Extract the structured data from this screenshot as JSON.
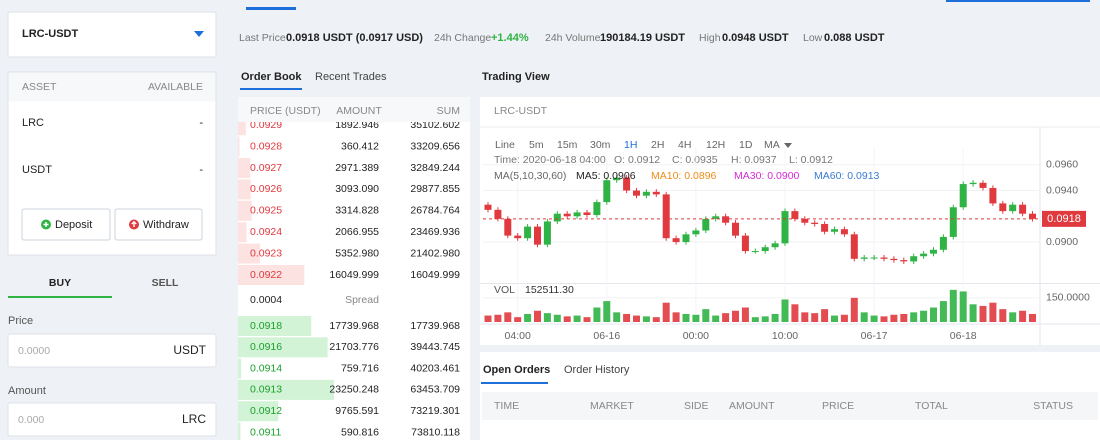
{
  "header": {
    "stats": [
      {
        "label": "Last Price",
        "value": "0.0918 USDT (0.0917 USD)"
      },
      {
        "label": "24h Change",
        "value": "+1.44%"
      },
      {
        "label": "24h Volume",
        "value": "190184.19 USDT"
      },
      {
        "label": "High",
        "value": "0.0948 USDT"
      },
      {
        "label": "Low",
        "value": "0.088 USDT"
      }
    ]
  },
  "sidebar": {
    "pair": "LRC-USDT",
    "assets": {
      "columns": [
        "ASSET",
        "AVAILABLE"
      ],
      "rows": [
        [
          "LRC",
          "-"
        ],
        [
          "USDT",
          "-"
        ]
      ]
    },
    "buttons": [
      "Deposit",
      "Withdraw"
    ],
    "tabs": [
      "BUY",
      "SELL"
    ],
    "fields": [
      {
        "label": "Price",
        "placeholder": "0.0000",
        "unit": "USDT"
      },
      {
        "label": "Amount",
        "placeholder": "0.000",
        "unit": "LRC"
      }
    ]
  },
  "order_book": {
    "tabs": [
      "Order Book",
      "Recent Trades"
    ],
    "columns": [
      "PRICE (USDT)",
      "AMOUNT",
      "SUM"
    ],
    "asks": [
      [
        "0.0929",
        "1892.946",
        "35102.602"
      ],
      [
        "0.0928",
        "360.412",
        "33209.656"
      ],
      [
        "0.0927",
        "2971.389",
        "32849.244"
      ],
      [
        "0.0926",
        "3093.090",
        "29877.855"
      ],
      [
        "0.0925",
        "3314.828",
        "26784.764"
      ],
      [
        "0.0924",
        "2066.955",
        "23469.936"
      ],
      [
        "0.0923",
        "5352.980",
        "21402.980"
      ],
      [
        "0.0922",
        "16049.999",
        "16049.999"
      ]
    ],
    "spread": [
      "0.0004",
      "Spread"
    ],
    "bids": [
      [
        "0.0918",
        "17739.968",
        "17739.968"
      ],
      [
        "0.0916",
        "21703.776",
        "39443.745"
      ],
      [
        "0.0914",
        "759.716",
        "40203.461"
      ],
      [
        "0.0913",
        "23250.248",
        "63453.709"
      ],
      [
        "0.0912",
        "9765.591",
        "73219.301"
      ],
      [
        "0.0911",
        "590.816",
        "73810.118"
      ]
    ]
  },
  "trading_view": {
    "title": "Trading View",
    "pair": "LRC-USDT",
    "intervals": [
      "Line",
      "5m",
      "15m",
      "30m",
      "1H",
      "2H",
      "4H",
      "12H",
      "1D",
      "MA"
    ],
    "info": [
      "Time: 2020-06-18 04:00",
      "O: 0.0912",
      "C: 0.0935",
      "H: 0.0937",
      "L: 0.0912"
    ],
    "ma_legend": [
      {
        "text": "MA(5,10,30,60)",
        "color": "#666666"
      },
      {
        "text": "MA5: 0.0906",
        "color": "#222222"
      },
      {
        "text": "MA10: 0.0896",
        "color": "#f08c1a"
      },
      {
        "text": "MA30: 0.0900",
        "color": "#d52bd5"
      },
      {
        "text": "MA60: 0.0913",
        "color": "#3a7bd5"
      }
    ]
  },
  "chart_data": {
    "type": "candlestick",
    "categories": [
      null,
      null,
      null,
      "04:00",
      null,
      null,
      null,
      null,
      null,
      null,
      null,
      null,
      "06-16",
      null,
      null,
      null,
      null,
      null,
      null,
      null,
      null,
      "00:00",
      null,
      null,
      null,
      null,
      null,
      null,
      null,
      null,
      "10:00",
      null,
      null,
      null,
      null,
      null,
      null,
      null,
      null,
      "06-17",
      null,
      null,
      null,
      null,
      null,
      null,
      null,
      null,
      "06-18",
      null,
      null,
      null,
      null,
      null,
      null,
      null
    ],
    "open": [
      0.0929,
      0.0925,
      0.0918,
      0.0905,
      0.0903,
      0.0912,
      0.0898,
      0.0916,
      0.0922,
      0.092,
      0.0923,
      0.0921,
      0.0931,
      0.0948,
      0.095,
      0.094,
      0.0936,
      0.0939,
      0.0937,
      0.0903,
      0.09,
      0.0906,
      0.0909,
      0.0918,
      0.092,
      0.0915,
      0.0905,
      0.0893,
      0.0893,
      0.0896,
      0.0899,
      0.0924,
      0.0918,
      0.0915,
      0.0914,
      0.0908,
      0.091,
      0.0906,
      0.0887,
      0.0888,
      0.0888,
      0.0887,
      0.0886,
      0.0885,
      0.0889,
      0.0891,
      0.0894,
      0.0904,
      0.0927,
      0.0945,
      0.0946,
      0.0942,
      0.093,
      0.0924,
      0.0929,
      0.0922
    ],
    "high": [
      0.0931,
      0.0927,
      0.092,
      0.0907,
      0.0914,
      0.0914,
      0.0918,
      0.0924,
      0.0924,
      0.0925,
      0.0925,
      0.0933,
      0.095,
      0.0952,
      0.0952,
      0.0942,
      0.0941,
      0.0941,
      0.0939,
      0.0905,
      0.0908,
      0.0911,
      0.092,
      0.0922,
      0.0922,
      0.0917,
      0.0907,
      0.0895,
      0.0898,
      0.0901,
      0.0926,
      0.0926,
      0.092,
      0.0917,
      0.0916,
      0.0912,
      0.0912,
      0.0908,
      0.089,
      0.089,
      0.089,
      0.0889,
      0.0888,
      0.0891,
      0.0893,
      0.0896,
      0.0906,
      0.0929,
      0.0947,
      0.0948,
      0.0948,
      0.0944,
      0.0932,
      0.0931,
      0.0931,
      0.0924
    ],
    "low": [
      0.0923,
      0.0916,
      0.0903,
      0.0901,
      0.0901,
      0.0896,
      0.0896,
      0.0914,
      0.0918,
      0.0918,
      0.0919,
      0.0919,
      0.0929,
      0.0946,
      0.0938,
      0.0934,
      0.0934,
      0.0935,
      0.0901,
      0.0898,
      0.0898,
      0.0904,
      0.0907,
      0.0916,
      0.0913,
      0.0903,
      0.0891,
      0.0891,
      0.0891,
      0.0894,
      0.0897,
      0.0916,
      0.0913,
      0.0912,
      0.0906,
      0.0906,
      0.0904,
      0.0885,
      0.0885,
      0.0886,
      0.0885,
      0.0884,
      0.0883,
      0.0883,
      0.0887,
      0.0889,
      0.0892,
      0.0902,
      0.0925,
      0.0943,
      0.094,
      0.0928,
      0.0922,
      0.0922,
      0.092,
      0.0916
    ],
    "close": [
      0.0925,
      0.0918,
      0.0905,
      0.0903,
      0.0912,
      0.0898,
      0.0916,
      0.0922,
      0.092,
      0.0923,
      0.0921,
      0.0931,
      0.0948,
      0.095,
      0.094,
      0.0936,
      0.0939,
      0.0937,
      0.0903,
      0.09,
      0.0906,
      0.0909,
      0.0918,
      0.092,
      0.0915,
      0.0905,
      0.0893,
      0.0893,
      0.0896,
      0.0899,
      0.0924,
      0.0918,
      0.0915,
      0.0914,
      0.0908,
      0.091,
      0.0906,
      0.0887,
      0.0888,
      0.0888,
      0.0887,
      0.0886,
      0.0885,
      0.0889,
      0.0891,
      0.0894,
      0.0904,
      0.0927,
      0.0945,
      0.0946,
      0.0942,
      0.093,
      0.0924,
      0.0929,
      0.0922,
      0.0918
    ],
    "volume": [
      40,
      45,
      60,
      30,
      50,
      70,
      55,
      45,
      35,
      40,
      30,
      90,
      130,
      60,
      50,
      40,
      35,
      30,
      120,
      60,
      50,
      45,
      80,
      40,
      55,
      70,
      90,
      30,
      35,
      50,
      140,
      110,
      60,
      55,
      80,
      40,
      45,
      150,
      60,
      40,
      35,
      45,
      50,
      60,
      70,
      90,
      130,
      200,
      190,
      110,
      100,
      120,
      80,
      60,
      70,
      50
    ],
    "up_color": "#2fb344",
    "down_color": "#e0393e",
    "ylim": [
      0.0869,
      0.0973
    ],
    "yticks": [
      {
        "value": 0.096,
        "label": "0.0960"
      },
      {
        "value": 0.094,
        "label": "0.0940"
      },
      {
        "value": 0.09,
        "label": "0.0900"
      }
    ],
    "last_price": {
      "value": 0.0918,
      "label": "0.0918"
    },
    "volume_label": "VOL",
    "volume_last": "152511.30",
    "volume_ylim": [
      0,
      230
    ],
    "volume_yticks": [
      {
        "value": 150,
        "label": "150.0000"
      }
    ],
    "grid": true
  },
  "orders": {
    "tabs": [
      "Open Orders",
      "Order History"
    ],
    "columns": [
      "TIME",
      "MARKET",
      "SIDE",
      "AMOUNT",
      "PRICE",
      "TOTAL",
      "STATUS"
    ]
  }
}
